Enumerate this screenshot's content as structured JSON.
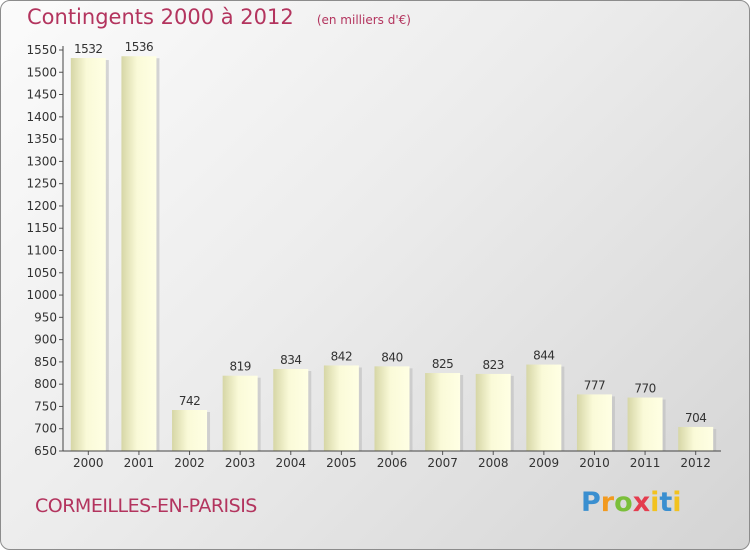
{
  "header": {
    "title": "Contingents 2000 à 2012",
    "unit": "(en milliers d'€)"
  },
  "footer": {
    "city": "CORMEILLES-EN-PARISIS",
    "brand": "Proxiti"
  },
  "colors": {
    "accent": "#b3345e",
    "bar_light": "#ffffe0",
    "bar_dark": "#d8d8a8"
  },
  "chart_data": {
    "type": "bar",
    "title": "Contingents 2000 à 2012",
    "subtitle": "(en milliers d'€)",
    "xlabel": "",
    "ylabel": "",
    "categories": [
      "2000",
      "2001",
      "2002",
      "2003",
      "2004",
      "2005",
      "2006",
      "2007",
      "2008",
      "2009",
      "2010",
      "2011",
      "2012"
    ],
    "values": [
      1532,
      1536,
      742,
      819,
      834,
      842,
      840,
      825,
      823,
      844,
      777,
      770,
      704
    ],
    "ylim": [
      650,
      1550
    ],
    "yticks": [
      650,
      700,
      750,
      800,
      850,
      900,
      950,
      1000,
      1050,
      1100,
      1150,
      1200,
      1250,
      1300,
      1350,
      1400,
      1450,
      1500,
      1550
    ],
    "grid": false,
    "legend": "none"
  }
}
